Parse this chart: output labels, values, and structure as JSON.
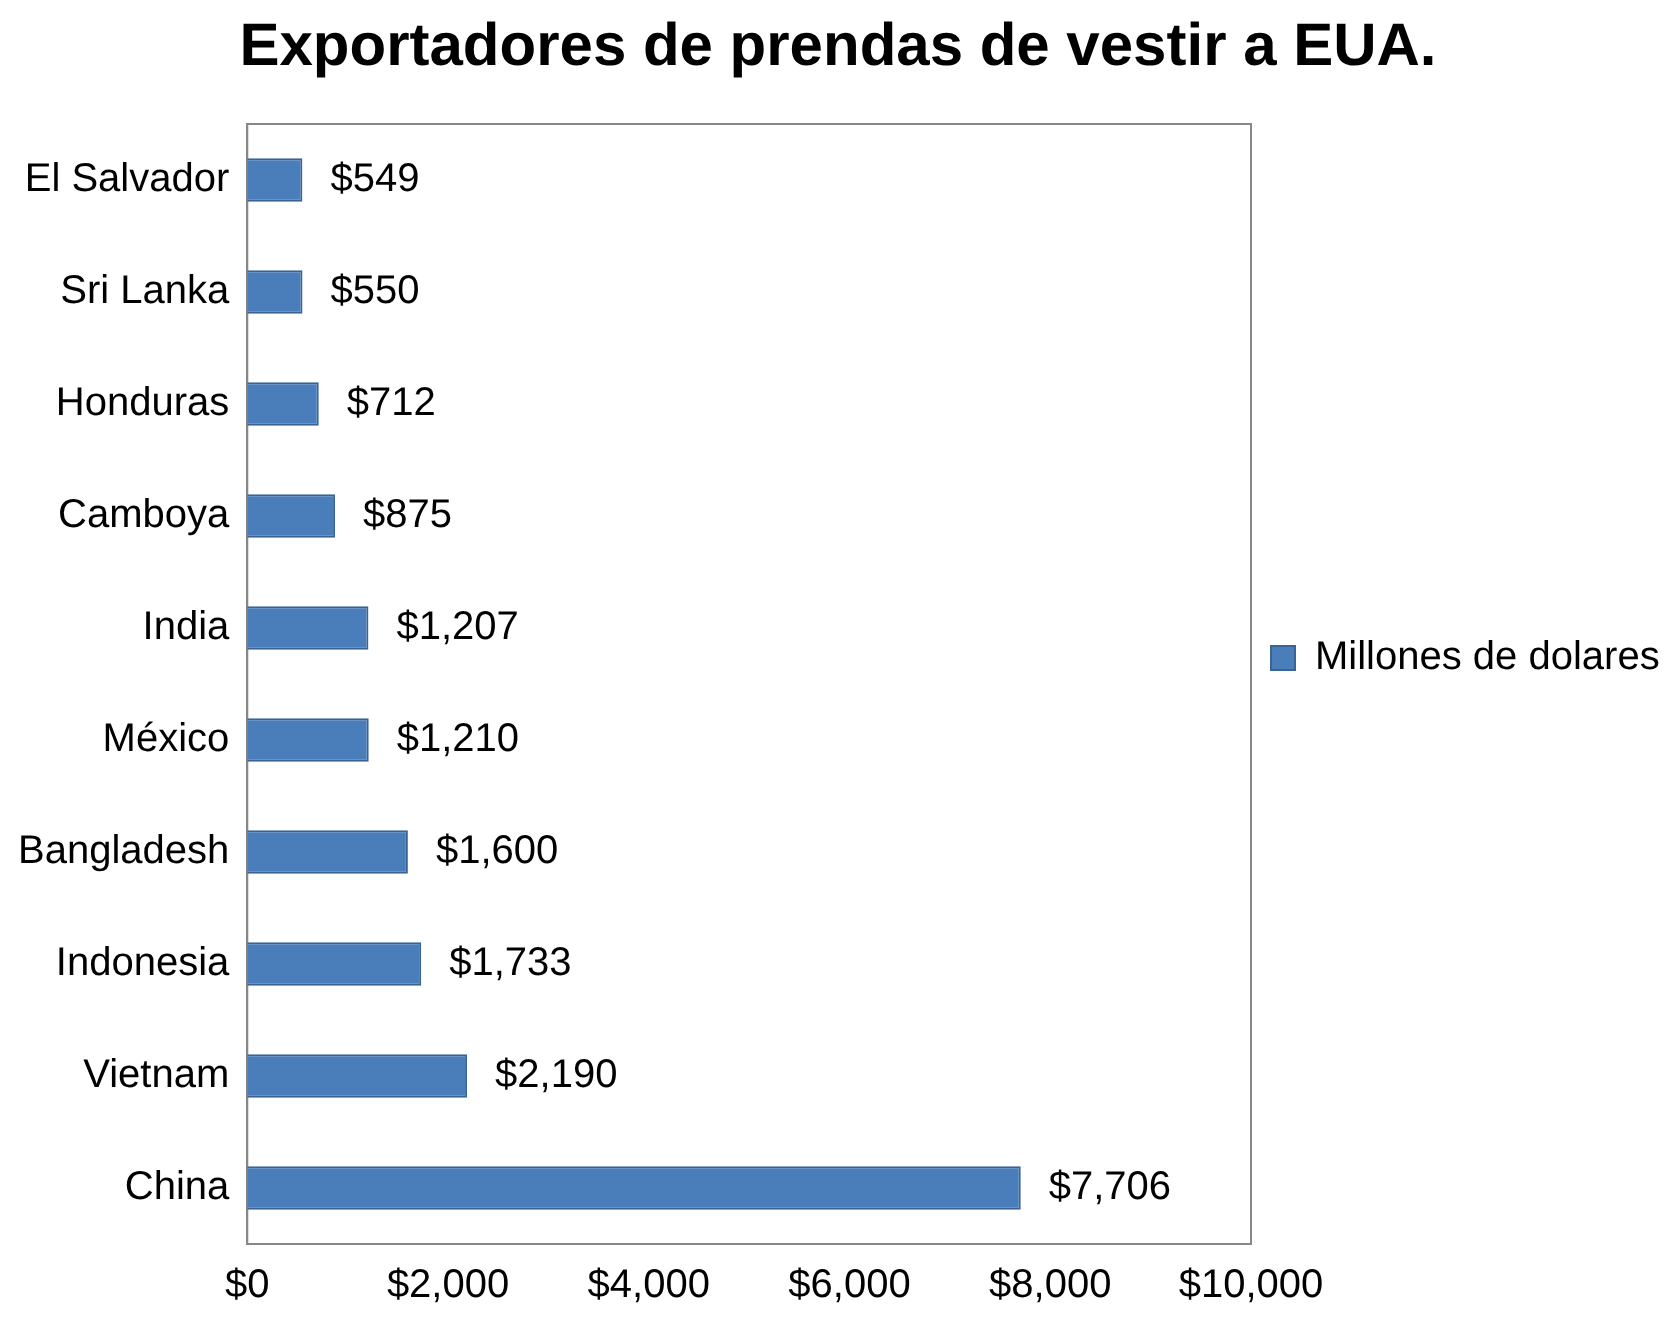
{
  "chart_data": {
    "type": "bar",
    "orientation": "horizontal",
    "title": "Exportadores de prendas de vestir a EUA.",
    "categories": [
      "El Salvador",
      "Sri Lanka",
      "Honduras",
      "Camboya",
      "India",
      "México",
      "Bangladesh",
      "Indonesia",
      "Vietnam",
      "China"
    ],
    "series": [
      {
        "name": "Millones de dolares",
        "color": "#4a7ebb",
        "values": [
          549,
          550,
          712,
          875,
          1207,
          1210,
          1600,
          1733,
          2190,
          7706
        ],
        "value_labels": [
          "$549",
          "$550",
          "$712",
          "$875",
          "$1,207",
          "$1,210",
          "$1,600",
          "$1,733",
          "$2,190",
          "$7,706"
        ]
      }
    ],
    "xlim": [
      0,
      10000
    ],
    "xticks": [
      {
        "value": 0,
        "label": "$0"
      },
      {
        "value": 2000,
        "label": "$2,000"
      },
      {
        "value": 4000,
        "label": "$4,000"
      },
      {
        "value": 6000,
        "label": "$6,000"
      },
      {
        "value": 8000,
        "label": "$8,000"
      },
      {
        "value": 10000,
        "label": "$10,000"
      }
    ],
    "grid": false,
    "legend": "right"
  }
}
